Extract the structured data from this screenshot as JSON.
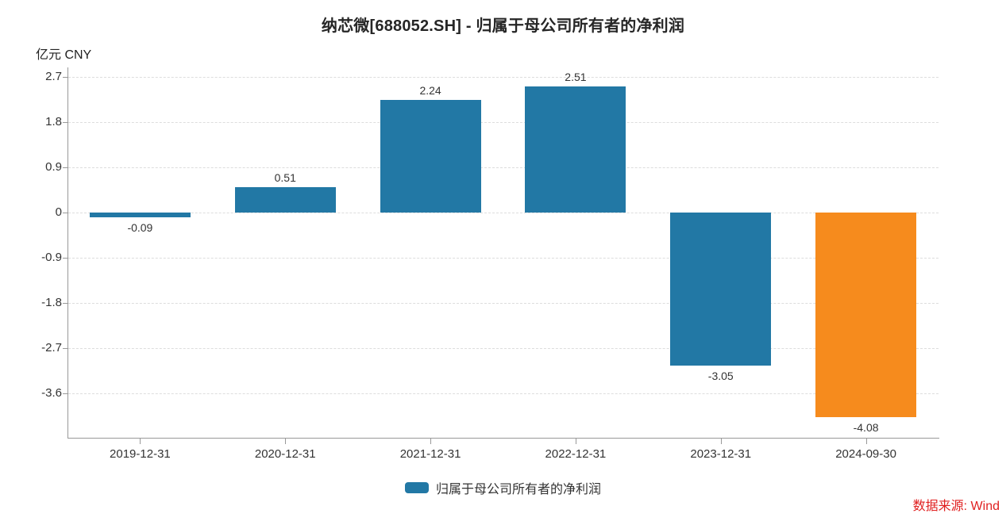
{
  "chart_data": {
    "type": "bar",
    "title": "纳芯微[688052.SH] - 归属于母公司所有者的净利润",
    "unit_label": "亿元 CNY",
    "categories": [
      "2019-12-31",
      "2020-12-31",
      "2021-12-31",
      "2022-12-31",
      "2023-12-31",
      "2024-09-30"
    ],
    "series": [
      {
        "name": "归属于母公司所有者的净利润",
        "values": [
          -0.09,
          0.51,
          2.24,
          2.51,
          -3.05,
          -4.08
        ]
      }
    ],
    "value_labels": [
      "-0.09",
      "0.51",
      "2.24",
      "2.51",
      "-3.05",
      "-4.08"
    ],
    "bar_colors": [
      "#2278A5",
      "#2278A5",
      "#2278A5",
      "#2278A5",
      "#2278A5",
      "#F68B1D"
    ],
    "yticks": [
      2.7,
      1.8,
      0.9,
      0,
      -0.9,
      -1.8,
      -2.7,
      -3.6
    ],
    "ylim": [
      -4.45,
      2.95
    ],
    "grid": true,
    "gridline_style": "dashed",
    "legend_position": "bottom",
    "xlabel": "",
    "ylabel": "亿元 CNY"
  },
  "legend": {
    "label": "归属于母公司所有者的净利润",
    "swatch_color": "#2278A5"
  },
  "source": {
    "label": "数据来源: Wind",
    "color": "#E02020"
  },
  "colors": {
    "bar_default": "#2278A5",
    "bar_highlight": "#F68B1D",
    "axis": "#999999",
    "grid": "#DDDDDD",
    "text": "#333333",
    "title": "#262626"
  }
}
